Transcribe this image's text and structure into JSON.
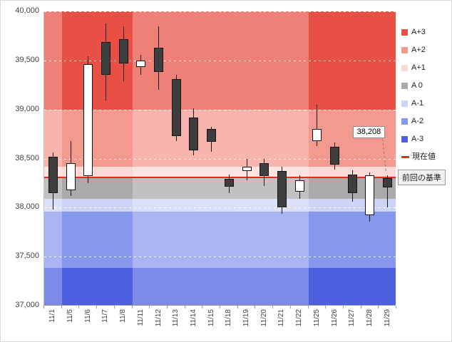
{
  "chart_data": {
    "type": "candlestick",
    "title": "",
    "ylim": [
      37000,
      40000
    ],
    "yticks": [
      {
        "value": 40000,
        "label": "40,000"
      },
      {
        "value": 39500,
        "label": "39,500"
      },
      {
        "value": 39000,
        "label": "39,000"
      },
      {
        "value": 38500,
        "label": "38,500"
      },
      {
        "value": 38000,
        "label": "38,000"
      },
      {
        "value": 37500,
        "label": "37,500"
      },
      {
        "value": 37000,
        "label": "37,000"
      }
    ],
    "dates": [
      "11/1",
      "11/5",
      "11/6",
      "11/7",
      "11/8",
      "11/11",
      "11/12",
      "11/13",
      "11/14",
      "11/15",
      "11/18",
      "11/19",
      "11/20",
      "11/21",
      "11/22",
      "11/25",
      "11/26",
      "11/27",
      "11/28",
      "11/29"
    ],
    "candles": [
      {
        "date": "11/1",
        "open": 38520,
        "high": 38560,
        "low": 37980,
        "close": 38150,
        "dir": "down"
      },
      {
        "date": "11/5",
        "open": 38180,
        "high": 38680,
        "low": 38120,
        "close": 38450,
        "dir": "up"
      },
      {
        "date": "11/6",
        "open": 38320,
        "high": 39540,
        "low": 38250,
        "close": 39460,
        "dir": "up"
      },
      {
        "date": "11/7",
        "open": 39690,
        "high": 39880,
        "low": 39090,
        "close": 39350,
        "dir": "down"
      },
      {
        "date": "11/8",
        "open": 39720,
        "high": 39850,
        "low": 39290,
        "close": 39470,
        "dir": "down"
      },
      {
        "date": "11/11",
        "open": 39430,
        "high": 39560,
        "low": 39350,
        "close": 39500,
        "dir": "up"
      },
      {
        "date": "11/12",
        "open": 39630,
        "high": 39850,
        "low": 39200,
        "close": 39380,
        "dir": "down"
      },
      {
        "date": "11/13",
        "open": 39310,
        "high": 39350,
        "low": 38680,
        "close": 38730,
        "dir": "down"
      },
      {
        "date": "11/14",
        "open": 38920,
        "high": 39010,
        "low": 38530,
        "close": 38580,
        "dir": "down"
      },
      {
        "date": "11/15",
        "open": 38800,
        "high": 38820,
        "low": 38570,
        "close": 38670,
        "dir": "down"
      },
      {
        "date": "11/18",
        "open": 38290,
        "high": 38340,
        "low": 38150,
        "close": 38210,
        "dir": "down"
      },
      {
        "date": "11/19",
        "open": 38370,
        "high": 38500,
        "low": 38280,
        "close": 38420,
        "dir": "up"
      },
      {
        "date": "11/20",
        "open": 38450,
        "high": 38500,
        "low": 38220,
        "close": 38320,
        "dir": "down"
      },
      {
        "date": "11/21",
        "open": 38370,
        "high": 38420,
        "low": 37940,
        "close": 38000,
        "dir": "down"
      },
      {
        "date": "11/22",
        "open": 38160,
        "high": 38330,
        "low": 38090,
        "close": 38280,
        "dir": "up"
      },
      {
        "date": "11/25",
        "open": 38680,
        "high": 39050,
        "low": 38630,
        "close": 38800,
        "dir": "up"
      },
      {
        "date": "11/26",
        "open": 38620,
        "high": 38660,
        "low": 38390,
        "close": 38440,
        "dir": "down"
      },
      {
        "date": "11/27",
        "open": 38340,
        "high": 38380,
        "low": 38060,
        "close": 38150,
        "dir": "down"
      },
      {
        "date": "11/28",
        "open": 37920,
        "high": 38360,
        "low": 37860,
        "close": 38330,
        "dir": "up"
      },
      {
        "date": "11/29",
        "open": 38300,
        "high": 38330,
        "low": 38000,
        "close": 38208,
        "dir": "down"
      }
    ],
    "bands": [
      {
        "label": "A+3",
        "from": 39000,
        "to": 40000,
        "color": "#e85045"
      },
      {
        "label": "A+2",
        "from": 38420,
        "to": 39000,
        "color": "#f4998f"
      },
      {
        "label": "A+1",
        "from": 38310,
        "to": 38420,
        "color": "#fbdad5"
      },
      {
        "label": "A 0",
        "from": 38090,
        "to": 38310,
        "color": "#aaaaaa"
      },
      {
        "label": "A-1",
        "from": 37960,
        "to": 38090,
        "color": "#cdd4f4"
      },
      {
        "label": "A-2",
        "from": 37385,
        "to": 37960,
        "color": "#8897ee"
      },
      {
        "label": "A-3",
        "from": 37000,
        "to": 37385,
        "color": "#4d5ede"
      }
    ],
    "light_week_columns": [
      [
        0,
        1
      ],
      [
        5,
        15
      ]
    ],
    "baseline": {
      "value": 38310,
      "color": "#e02b20",
      "label": "前回の基準"
    },
    "current": {
      "value": 38208,
      "label": "38,208"
    },
    "legend": [
      {
        "label": "A+3",
        "color": "#e85045",
        "type": "square"
      },
      {
        "label": "A+2",
        "color": "#f4998f",
        "type": "square"
      },
      {
        "label": "A+1",
        "color": "#fbdad5",
        "type": "square"
      },
      {
        "label": "A 0",
        "color": "#aaaaaa",
        "type": "square"
      },
      {
        "label": "A-1",
        "color": "#cdd4f4",
        "type": "square"
      },
      {
        "label": "A-2",
        "color": "#8897ee",
        "type": "square"
      },
      {
        "label": "A-3",
        "color": "#4d5ede",
        "type": "square"
      },
      {
        "label": "現在値",
        "color": "#e02b20",
        "type": "dash"
      }
    ]
  }
}
